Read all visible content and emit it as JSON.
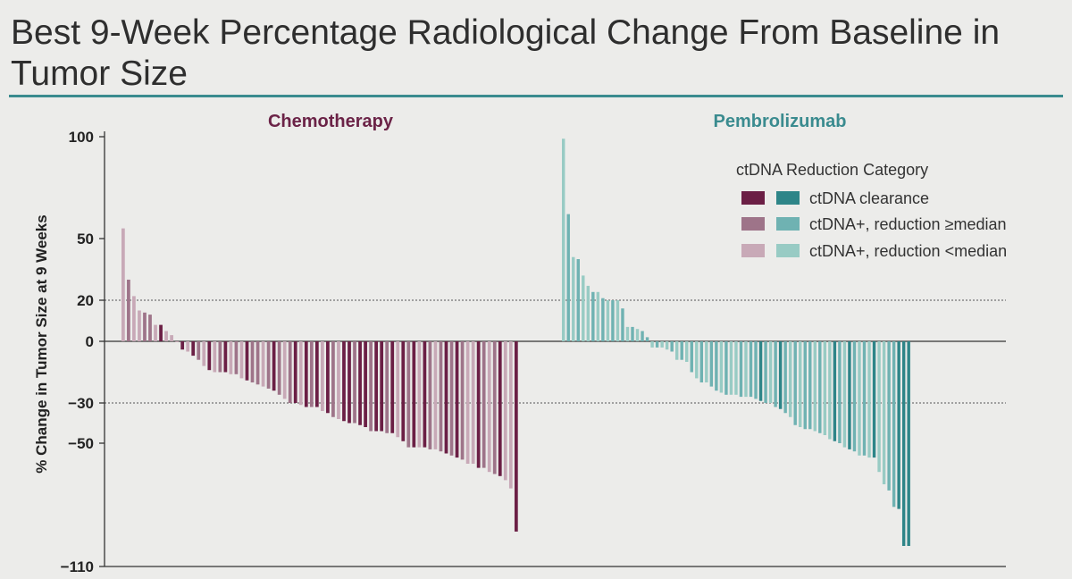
{
  "title": "Best 9-Week Percentage Radiological Change From Baseline in Tumor Size",
  "colors": {
    "title_rule": "#3a8b8f",
    "chemo_title": "#6b2347",
    "pembro_title": "#3a8b8f",
    "chemo": {
      "clearance": "#6b1f45",
      "ge_median": "#9e7489",
      "lt_median": "#c8a9b7"
    },
    "pembro": {
      "clearance": "#2e8588",
      "ge_median": "#6fb2b2",
      "lt_median": "#98cbc4"
    }
  },
  "chart_data": {
    "type": "bar",
    "subtype": "waterfall",
    "ylabel": "% Change in Tumor Size at 9 Weeks",
    "yticks": [
      "100",
      "50",
      "20",
      "0",
      "−30",
      "−50",
      "−110"
    ],
    "ytick_values": [
      100,
      50,
      20,
      0,
      -30,
      -50,
      -110
    ],
    "ylim": [
      -110,
      100
    ],
    "reference_lines": [
      20,
      -30
    ],
    "legend": {
      "title": "ctDNA Reduction Category",
      "placement": "top-right",
      "entries": [
        {
          "key": "clearance",
          "label": "ctDNA clearance"
        },
        {
          "key": "ge_median",
          "label": "ctDNA+, reduction ≥median"
        },
        {
          "key": "lt_median",
          "label": "ctDNA+, reduction <median"
        }
      ]
    },
    "panels": [
      {
        "name": "Chemotherapy",
        "values": [
          55,
          30,
          22,
          15,
          14,
          13,
          8,
          8,
          5,
          3,
          0,
          -4,
          -5,
          -7,
          -9,
          -12,
          -14,
          -15,
          -15,
          -15,
          -16,
          -16,
          -18,
          -19,
          -20,
          -21,
          -22,
          -23,
          -24,
          -26,
          -28,
          -30,
          -30,
          -31,
          -32,
          -32,
          -32,
          -34,
          -35,
          -37,
          -38,
          -39,
          -40,
          -40,
          -41,
          -42,
          -44,
          -44,
          -44,
          -45,
          -45,
          -47,
          -49,
          -52,
          -52,
          -52,
          -52,
          -53,
          -53,
          -54,
          -55,
          -56,
          -57,
          -58,
          -60,
          -60,
          -62,
          -62,
          -64,
          -65,
          -66,
          -68,
          -72,
          -93
        ],
        "categories": [
          "lt",
          "ge",
          "lt",
          "lt",
          "ge",
          "ge",
          "lt",
          "cl",
          "lt",
          "lt",
          "lt",
          "cl",
          "lt",
          "cl",
          "ge",
          "lt",
          "cl",
          "lt",
          "ge",
          "cl",
          "lt",
          "ge",
          "lt",
          "cl",
          "ge",
          "ge",
          "lt",
          "ge",
          "cl",
          "ge",
          "lt",
          "ge",
          "cl",
          "lt",
          "cl",
          "ge",
          "cl",
          "lt",
          "cl",
          "ge",
          "lt",
          "cl",
          "cl",
          "ge",
          "cl",
          "cl",
          "ge",
          "cl",
          "cl",
          "ge",
          "cl",
          "lt",
          "cl",
          "ge",
          "cl",
          "lt",
          "cl",
          "ge",
          "lt",
          "ge",
          "cl",
          "ge",
          "cl",
          "ge",
          "lt",
          "lt",
          "cl",
          "ge",
          "lt",
          "ge",
          "cl",
          "lt",
          "lt",
          "cl"
        ]
      },
      {
        "name": "Pembrolizumab",
        "values": [
          99,
          62,
          41,
          40,
          32,
          27,
          24,
          24,
          21,
          20,
          20,
          20,
          16,
          7,
          7,
          6,
          5,
          2,
          -3,
          -3,
          -3,
          -4,
          -5,
          -9,
          -9,
          -10,
          -15,
          -18,
          -20,
          -20,
          -22,
          -24,
          -25,
          -26,
          -26,
          -26,
          -27,
          -27,
          -27,
          -28,
          -29,
          -30,
          -30,
          -32,
          -33,
          -35,
          -37,
          -41,
          -42,
          -43,
          -43,
          -44,
          -45,
          -46,
          -48,
          -49,
          -50,
          -52,
          -53,
          -54,
          -56,
          -56,
          -57,
          -57,
          -64,
          -70,
          -73,
          -81,
          -82,
          -100,
          -100
        ],
        "categories": [
          "lt",
          "ge",
          "lt",
          "ge",
          "lt",
          "lt",
          "ge",
          "lt",
          "ge",
          "lt",
          "ge",
          "lt",
          "ge",
          "lt",
          "ge",
          "lt",
          "ge",
          "ge",
          "lt",
          "ge",
          "lt",
          "lt",
          "ge",
          "lt",
          "ge",
          "lt",
          "ge",
          "lt",
          "ge",
          "lt",
          "ge",
          "ge",
          "lt",
          "ge",
          "lt",
          "lt",
          "ge",
          "lt",
          "ge",
          "ge",
          "cl",
          "ge",
          "lt",
          "ge",
          "cl",
          "ge",
          "lt",
          "ge",
          "lt",
          "ge",
          "ge",
          "lt",
          "ge",
          "lt",
          "lt",
          "cl",
          "ge",
          "lt",
          "cl",
          "ge",
          "lt",
          "ge",
          "lt",
          "cl",
          "lt",
          "lt",
          "ge",
          "ge",
          "cl",
          "cl",
          "cl"
        ]
      }
    ]
  }
}
